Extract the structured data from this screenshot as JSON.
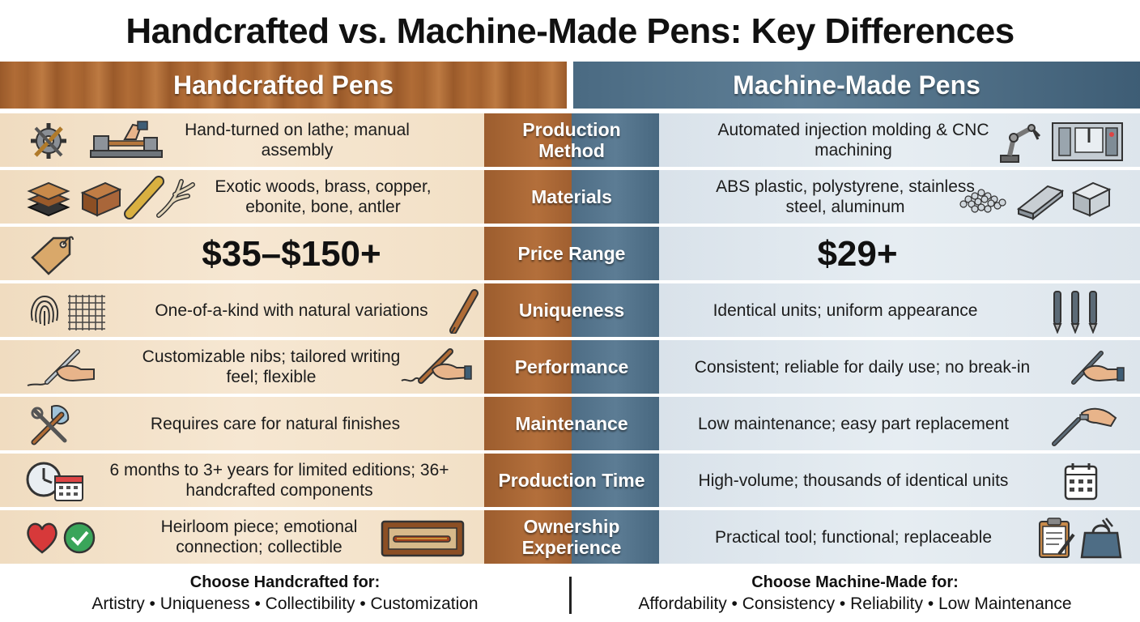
{
  "title": "Handcrafted vs. Machine-Made Pens: Key Differences",
  "headers": {
    "left": "Handcrafted Pens",
    "right": "Machine-Made Pens"
  },
  "rows": [
    {
      "category": "Production Method",
      "left": "Hand-turned on lathe; manual assembly",
      "right": "Automated injection molding & CNC machining",
      "left_icons": [
        "gear-wrench-icon",
        "lathe-icon"
      ],
      "right_icons": [
        "robot-arm-icon",
        "cnc-machine-icon"
      ]
    },
    {
      "category": "Materials",
      "left": "Exotic woods, brass, copper, ebonite, bone, antler",
      "right": "ABS plastic, polystyrene, stainless steel, aluminum",
      "left_icons": [
        "layered-material-icon",
        "wood-block-icon",
        "brass-rod-icon",
        "antler-icon"
      ],
      "right_icons": [
        "plastic-pellets-icon",
        "steel-bar-icon",
        "aluminum-block-icon"
      ]
    },
    {
      "category": "Price Range",
      "left": "$35–$150+",
      "right": "$29+",
      "left_icons": [
        "price-tag-icon"
      ],
      "right_icons": []
    },
    {
      "category": "Uniqueness",
      "left": "One-of-a-kind with natural variations",
      "right": "Identical units; uniform appearance",
      "left_icons": [
        "fingerprint-icon",
        "grid-pattern-icon",
        "wooden-pen-icon"
      ],
      "right_icons": [
        "identical-pens-icon"
      ]
    },
    {
      "category": "Performance",
      "left": "Customizable nibs; tailored writing feel; flexible",
      "right": "Consistent; reliable for daily use; no break-in",
      "left_icons": [
        "hand-writing-icon",
        "hand-fountain-pen-icon"
      ],
      "right_icons": [
        "hand-writing-icon"
      ]
    },
    {
      "category": "Maintenance",
      "left": "Requires care for natural finishes",
      "right": "Low maintenance; easy part replacement",
      "left_icons": [
        "tools-cloth-icon"
      ],
      "right_icons": [
        "hand-pen-part-icon"
      ]
    },
    {
      "category": "Production Time",
      "left": "6 months to 3+ years for limited editions; 36+ handcrafted components",
      "right": "High-volume; thousands of identical units",
      "left_icons": [
        "clock-calendar-icon"
      ],
      "right_icons": [
        "calendar-icon"
      ]
    },
    {
      "category": "Ownership Experience",
      "left": "Heirloom piece; emotional connection; collectible",
      "right": "Practical tool; functional; replaceable",
      "left_icons": [
        "heart-icon",
        "check-circle-icon",
        "pen-case-icon"
      ],
      "right_icons": [
        "clipboard-icon",
        "bag-icon"
      ]
    }
  ],
  "footer": {
    "left_heading": "Choose Handcrafted for:",
    "left_list": "Artistry • Uniqueness • Collectibility • Customization",
    "right_heading": "Choose Machine-Made for:",
    "right_list": "Affordability • Consistency • Reliability • Low Maintenance"
  }
}
